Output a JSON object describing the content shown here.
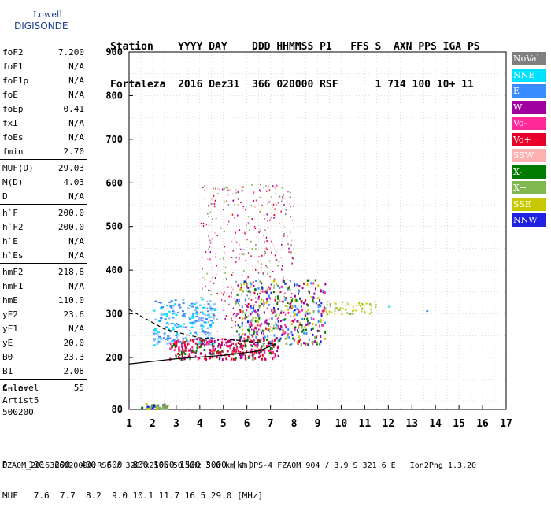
{
  "logo": {
    "line1": "Lowell",
    "line2": "DIGISONDE"
  },
  "header": {
    "line1": "Station    YYYY DAY    DDD HHMMSS P1   FFS S  AXN PPS IGA PS",
    "line2": "Fortaleza  2016 Dez31  366 020000 RSF      1 714 100 10+ 11"
  },
  "params": [
    {
      "key": "foF2",
      "value": "7.200"
    },
    {
      "key": "foF1",
      "value": "N/A"
    },
    {
      "key": "foF1p",
      "value": "N/A"
    },
    {
      "key": "foE",
      "value": "N/A"
    },
    {
      "key": "foEp",
      "value": "0.41"
    },
    {
      "key": "fxI",
      "value": "N/A"
    },
    {
      "key": "foEs",
      "value": "N/A"
    },
    {
      "key": "fmin",
      "value": "2.70"
    },
    {
      "key": "MUF(D)",
      "value": "29.03"
    },
    {
      "key": "M(D)",
      "value": "4.03"
    },
    {
      "key": "D",
      "value": "N/A"
    },
    {
      "key": "h`F",
      "value": "200.0"
    },
    {
      "key": "h`F2",
      "value": "200.0"
    },
    {
      "key": "h`E",
      "value": "N/A"
    },
    {
      "key": "h`Es",
      "value": "N/A"
    },
    {
      "key": "hmF2",
      "value": "218.8"
    },
    {
      "key": "hmF1",
      "value": "N/A"
    },
    {
      "key": "hmE",
      "value": "110.0"
    },
    {
      "key": "yF2",
      "value": "23.6"
    },
    {
      "key": "yF1",
      "value": "N/A"
    },
    {
      "key": "yE",
      "value": "20.0"
    },
    {
      "key": "B0",
      "value": "23.3"
    },
    {
      "key": "B1",
      "value": "2.08"
    },
    {
      "key": "C-level",
      "value": "55"
    }
  ],
  "auto": {
    "line1": "Auto:",
    "line2": "Artist5",
    "line3": "500200"
  },
  "legend": [
    {
      "label": "NoVal",
      "color": "#808080"
    },
    {
      "label": "NNE",
      "color": "#00e0ff"
    },
    {
      "label": "E",
      "color": "#3a8bff"
    },
    {
      "label": "W",
      "color": "#a000a0"
    },
    {
      "label": "Vo-",
      "color": "#ff2a9a"
    },
    {
      "label": "Vo+",
      "color": "#e8002a"
    },
    {
      "label": "SSW",
      "color": "#ffb0b0"
    },
    {
      "label": "X-",
      "color": "#007a00"
    },
    {
      "label": "X+",
      "color": "#80b850"
    },
    {
      "label": "SSE",
      "color": "#c8c800"
    },
    {
      "label": "NNW",
      "color": "#2020e0"
    }
  ],
  "bottom": {
    "line1": "D    100  200  400  600  800 1000 1500 3000 [km]",
    "line2": "MUF   7.6  7.7  8.2  9.0 10.1 11.7 16.5 29.0 [MHz]"
  },
  "footer": "FZA0M_2016366020000.RSF / 320fx256h 50 kHz 5.0 km / DPS-4 FZA0M 904 / 3.9 S 321.6 E   Ion2Png 1.3.20",
  "chart_data": {
    "type": "scatter",
    "x_ticks": [
      "1",
      "2",
      "3",
      "4",
      "5",
      "6",
      "7",
      "8",
      "9",
      "10",
      "11",
      "12",
      "13",
      "14",
      "15",
      "16",
      "17"
    ],
    "y_ticks": [
      "80",
      "200",
      "300",
      "400",
      "500",
      "600",
      "700",
      "800",
      "900"
    ],
    "xlim": [
      1,
      17
    ],
    "ylim": [
      80,
      900
    ],
    "grid": "minor dotted",
    "clusters": [
      {
        "name": "NoVal",
        "x": [
          1.5,
          2.5
        ],
        "y": [
          80,
          95
        ]
      },
      {
        "name": "F-trace-O",
        "x": [
          2.7,
          7.2
        ],
        "y": [
          200,
          240
        ]
      },
      {
        "name": "spread-F",
        "x": [
          3.0,
          9.5
        ],
        "y": [
          220,
          600
        ]
      },
      {
        "name": "E-echoes",
        "x": [
          2.0,
          4.5
        ],
        "y": [
          230,
          330
        ]
      },
      {
        "name": "oblique",
        "x": [
          9.0,
          11.5
        ],
        "y": [
          300,
          330
        ]
      }
    ],
    "profile_curve": [
      {
        "x": 1.0,
        "y": 185
      },
      {
        "x": 3.0,
        "y": 197
      },
      {
        "x": 5.0,
        "y": 205
      },
      {
        "x": 6.5,
        "y": 215
      },
      {
        "x": 7.2,
        "y": 230
      }
    ],
    "profile_upper": [
      {
        "x": 1.0,
        "y": 310
      },
      {
        "x": 2.5,
        "y": 265
      },
      {
        "x": 4.0,
        "y": 245
      },
      {
        "x": 5.5,
        "y": 240
      },
      {
        "x": 7.2,
        "y": 230
      }
    ]
  }
}
